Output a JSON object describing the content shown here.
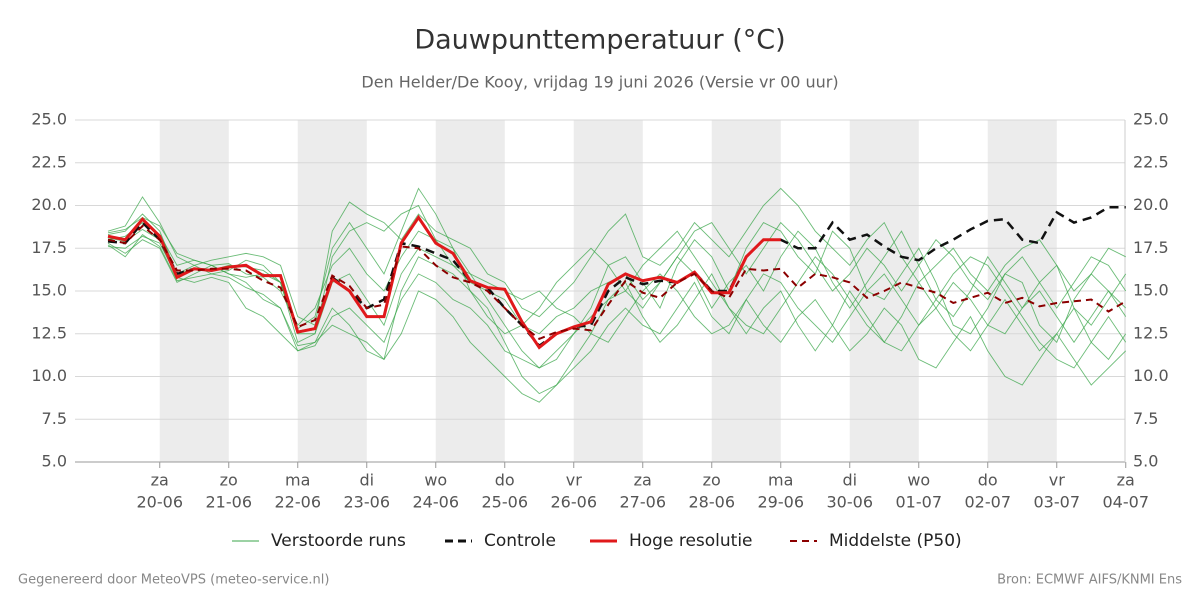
{
  "chart_data": {
    "type": "line",
    "title": "Dauwpunttemperatuur (°C)",
    "subtitle": "Den Helder/De Kooy, vrijdag 19 juni 2026 (Versie vr 00 uur)",
    "footer_left": "Gegenereerd door MeteoVPS (meteo-service.nl)",
    "footer_right": "Bron: ECMWF AIFS/KNMI Ens",
    "categories": [
      null,
      null,
      null,
      [
        "za",
        "20-06"
      ],
      null,
      null,
      null,
      [
        "zo",
        "21-06"
      ],
      null,
      null,
      null,
      [
        "ma",
        "22-06"
      ],
      null,
      null,
      null,
      [
        "di",
        "23-06"
      ],
      null,
      null,
      null,
      [
        "wo",
        "24-06"
      ],
      null,
      null,
      null,
      [
        "do",
        "25-06"
      ],
      null,
      null,
      null,
      [
        "vr",
        "26-06"
      ],
      null,
      null,
      null,
      [
        "za",
        "27-06"
      ],
      null,
      null,
      null,
      [
        "zo",
        "28-06"
      ],
      null,
      null,
      null,
      [
        "ma",
        "29-06"
      ],
      null,
      null,
      null,
      [
        "di",
        "30-06"
      ],
      null,
      null,
      null,
      [
        "wo",
        "01-07"
      ],
      null,
      null,
      null,
      [
        "do",
        "02-07"
      ],
      null,
      null,
      null,
      [
        "vr",
        "03-07"
      ],
      null,
      null,
      null,
      [
        "za",
        "04-07"
      ]
    ],
    "ylim": [
      5,
      25
    ],
    "yticks": [
      {
        "value": 5,
        "label": "5.0"
      },
      7.5,
      {
        "value": 10,
        "label": "10.0"
      },
      12.5,
      {
        "value": 15,
        "label": "15.0"
      },
      17.5,
      {
        "value": 20,
        "label": "20.0"
      },
      22.5,
      {
        "value": 25,
        "label": "25.0"
      }
    ],
    "grid": true,
    "ensemble": {
      "name": "Verstoorde runs",
      "color": "#3aa64a",
      "members": [
        [
          18.3,
          18.5,
          19.5,
          18.5,
          16.0,
          16.5,
          16.0,
          16.2,
          16.8,
          16.5,
          15.5,
          12.0,
          12.5,
          17.0,
          18.5,
          19.0,
          18.5,
          19.5,
          20.0,
          18.0,
          17.5,
          16.0,
          14.5,
          13.0,
          11.5,
          10.5,
          11.0,
          12.5,
          14.0,
          16.5,
          17.0,
          15.5,
          14.0,
          16.5,
          18.0,
          17.0,
          15.0,
          17.5,
          19.0,
          18.5,
          17.0,
          16.0,
          18.5,
          17.5,
          15.0,
          14.5,
          16.0,
          17.5,
          15.5,
          13.0,
          12.5,
          14.0,
          16.0,
          15.5,
          13.0,
          12.0,
          14.5,
          16.0,
          15.0,
          13.5
        ],
        [
          17.8,
          17.2,
          18.0,
          17.5,
          15.5,
          16.0,
          16.5,
          16.0,
          15.5,
          14.5,
          14.0,
          11.8,
          12.0,
          14.0,
          13.0,
          11.5,
          11.0,
          15.0,
          17.0,
          16.5,
          16.0,
          15.0,
          14.0,
          12.0,
          10.0,
          9.0,
          9.5,
          11.0,
          12.5,
          14.5,
          15.0,
          16.5,
          17.5,
          18.5,
          17.0,
          15.5,
          14.0,
          13.0,
          12.5,
          14.0,
          15.5,
          17.0,
          16.0,
          14.5,
          13.0,
          12.0,
          11.5,
          13.0,
          14.5,
          16.0,
          17.0,
          16.5,
          15.0,
          13.5,
          12.0,
          11.0,
          10.5,
          12.0,
          13.5,
          12.0
        ],
        [
          18.5,
          18.8,
          20.5,
          19.0,
          17.0,
          16.5,
          16.8,
          17.0,
          17.2,
          17.0,
          16.5,
          13.5,
          13.0,
          18.5,
          20.2,
          19.5,
          19.0,
          18.0,
          19.5,
          18.5,
          18.0,
          17.5,
          16.0,
          15.5,
          14.0,
          13.5,
          14.5,
          15.5,
          17.0,
          18.5,
          19.5,
          17.0,
          16.5,
          17.5,
          19.0,
          18.0,
          17.0,
          18.5,
          20.0,
          21.0,
          20.0,
          18.5,
          17.5,
          16.5,
          18.0,
          19.0,
          17.0,
          15.5,
          16.5,
          17.5,
          16.0,
          15.0,
          16.5,
          17.5,
          18.0,
          16.5,
          15.0,
          16.0,
          17.5,
          17.0
        ],
        [
          17.6,
          17.5,
          18.2,
          17.8,
          15.8,
          15.5,
          15.8,
          15.5,
          14.0,
          13.5,
          12.5,
          11.5,
          12.0,
          13.0,
          12.5,
          12.0,
          11.0,
          12.5,
          15.0,
          14.5,
          13.5,
          12.0,
          11.0,
          10.0,
          9.0,
          8.5,
          9.5,
          10.5,
          11.5,
          13.0,
          14.0,
          13.0,
          12.5,
          14.0,
          15.5,
          13.5,
          12.5,
          14.5,
          13.0,
          12.0,
          13.5,
          14.5,
          13.0,
          11.5,
          12.5,
          14.0,
          13.0,
          11.0,
          10.5,
          12.0,
          13.5,
          11.5,
          10.0,
          9.5,
          11.0,
          12.5,
          11.0,
          9.5,
          10.5,
          11.5
        ],
        [
          18.0,
          18.2,
          19.0,
          18.3,
          16.5,
          16.8,
          16.5,
          16.6,
          16.0,
          15.8,
          15.0,
          13.0,
          14.0,
          16.5,
          17.5,
          16.0,
          15.0,
          17.0,
          18.5,
          18.0,
          16.5,
          15.5,
          15.0,
          14.5,
          13.0,
          12.5,
          13.5,
          14.0,
          15.0,
          15.5,
          16.0,
          14.5,
          15.5,
          17.0,
          16.0,
          14.0,
          15.5,
          16.5,
          15.0,
          17.0,
          18.5,
          17.5,
          15.5,
          14.0,
          15.5,
          17.0,
          18.5,
          16.5,
          14.5,
          13.5,
          15.0,
          17.0,
          15.5,
          14.0,
          15.5,
          16.5,
          14.0,
          13.0,
          14.5,
          16.0
        ],
        [
          18.1,
          17.9,
          18.6,
          18.0,
          16.0,
          16.3,
          16.2,
          16.5,
          16.4,
          16.2,
          15.5,
          12.5,
          12.5,
          15.5,
          16.0,
          14.5,
          13.0,
          16.0,
          17.5,
          17.0,
          16.5,
          16.0,
          15.5,
          15.0,
          14.5,
          15.0,
          14.0,
          13.5,
          12.5,
          12.0,
          13.5,
          15.0,
          16.0,
          15.0,
          13.5,
          12.5,
          13.0,
          14.5,
          16.0,
          15.5,
          14.0,
          13.0,
          12.0,
          13.5,
          15.0,
          16.0,
          14.5,
          13.0,
          14.0,
          15.5,
          14.5,
          13.0,
          12.5,
          14.0,
          15.0,
          13.5,
          12.0,
          13.5,
          15.0,
          14.0
        ],
        [
          18.4,
          18.6,
          19.3,
          18.8,
          17.2,
          16.8,
          16.5,
          16.0,
          15.8,
          16.0,
          15.5,
          12.8,
          13.5,
          17.5,
          19.0,
          17.5,
          16.0,
          18.5,
          21.0,
          19.5,
          17.5,
          15.0,
          13.5,
          12.5,
          13.0,
          14.0,
          15.5,
          16.5,
          17.5,
          16.5,
          15.0,
          14.0,
          15.5,
          17.0,
          18.5,
          19.0,
          17.5,
          16.0,
          17.5,
          19.0,
          18.0,
          16.5,
          15.0,
          16.0,
          17.5,
          16.5,
          15.0,
          16.5,
          18.0,
          17.0,
          15.5,
          14.5,
          16.0,
          17.0,
          15.5,
          14.0,
          15.5,
          17.0,
          16.5,
          15.0
        ],
        [
          17.7,
          17.0,
          18.3,
          17.6,
          15.6,
          15.8,
          16.0,
          15.8,
          15.2,
          14.8,
          14.0,
          11.5,
          11.8,
          13.5,
          14.0,
          13.0,
          12.0,
          14.5,
          16.0,
          15.5,
          14.5,
          14.0,
          13.0,
          11.5,
          11.0,
          10.5,
          11.5,
          12.5,
          13.5,
          14.5,
          15.5,
          13.5,
          12.0,
          13.0,
          14.5,
          16.0,
          14.0,
          12.5,
          14.0,
          15.0,
          13.0,
          11.5,
          13.0,
          15.0,
          13.5,
          12.0,
          13.5,
          15.5,
          14.0,
          12.5,
          11.5,
          13.0,
          14.5,
          13.0,
          11.5,
          12.5,
          14.0,
          12.0,
          11.0,
          12.5
        ]
      ]
    },
    "series": [
      {
        "name": "Controle",
        "color": "#111111",
        "values": [
          17.9,
          17.8,
          19.0,
          18.0,
          16.0,
          16.3,
          16.2,
          16.4,
          16.5,
          15.9,
          15.9,
          12.6,
          12.8,
          15.8,
          15.0,
          14.0,
          14.5,
          17.8,
          17.6,
          17.2,
          16.8,
          15.6,
          15.2,
          14.0,
          13.0,
          11.8,
          12.5,
          12.9,
          13.0,
          15.0,
          15.8,
          15.4,
          15.6,
          15.5,
          16.1,
          15.0,
          15.0,
          17.0,
          18.0,
          18.0,
          17.5,
          17.5,
          19.0,
          18.0,
          18.3,
          17.6,
          17.0,
          16.8,
          17.5,
          18.0,
          18.6,
          19.1,
          19.2,
          18.0,
          17.8,
          19.6,
          19.0,
          19.3,
          19.9,
          19.9
        ]
      },
      {
        "name": "Hoge resolutie",
        "color": "#e0191b",
        "values": [
          18.2,
          18.0,
          19.2,
          18.2,
          15.8,
          16.3,
          16.2,
          16.4,
          16.5,
          15.9,
          15.9,
          12.6,
          12.8,
          15.7,
          15.0,
          13.5,
          13.5,
          17.8,
          19.3,
          17.8,
          17.2,
          15.6,
          15.2,
          15.1,
          13.2,
          11.7,
          12.5,
          12.9,
          13.2,
          15.4,
          16.0,
          15.6,
          15.8,
          15.5,
          16.1,
          14.9,
          14.9,
          17.0,
          18.0,
          18.0,
          null,
          null,
          null,
          null,
          null,
          null,
          null,
          null,
          null,
          null,
          null,
          null,
          null,
          null,
          null,
          null,
          null,
          null,
          null,
          null
        ]
      },
      {
        "name": "Middelste (P50)",
        "color": "#8b0000",
        "values": [
          18.0,
          17.8,
          18.8,
          18.0,
          16.2,
          16.2,
          16.3,
          16.3,
          16.2,
          15.6,
          15.2,
          12.9,
          13.3,
          15.9,
          15.3,
          14.0,
          14.2,
          17.6,
          17.5,
          16.5,
          15.8,
          15.5,
          15.0,
          14.0,
          13.0,
          12.2,
          12.6,
          12.8,
          12.7,
          14.2,
          15.6,
          14.9,
          14.6,
          15.5,
          16.0,
          15.0,
          14.6,
          16.3,
          16.2,
          16.3,
          15.2,
          16.0,
          15.8,
          15.5,
          14.6,
          15.0,
          15.5,
          15.2,
          14.9,
          14.3,
          14.6,
          14.9,
          14.3,
          14.6,
          14.1,
          14.3,
          14.4,
          14.5,
          13.8,
          14.4
        ]
      }
    ]
  }
}
